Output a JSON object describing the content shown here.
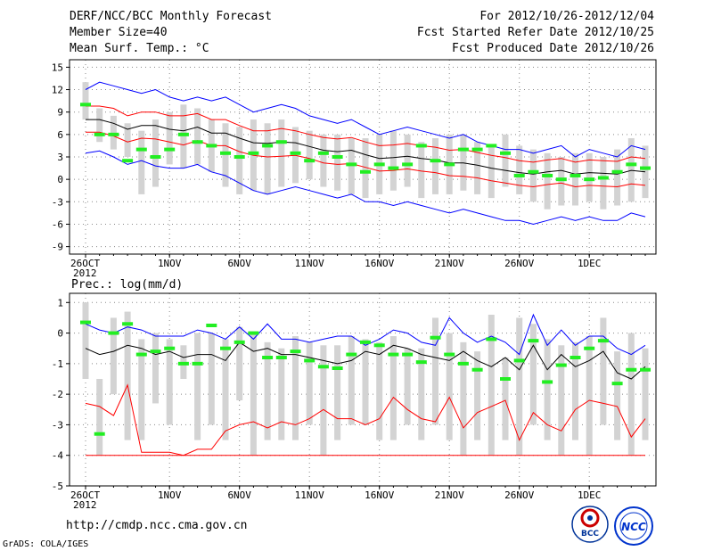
{
  "header": {
    "title": "DERF/NCC/BCC Monthly Forecast",
    "member_size": "Member Size=40",
    "variable": "Mean Surf. Temp.: °C",
    "period": "For 2012/10/26-2012/12/04",
    "started": "Fcst Started Refer Date 2012/10/25",
    "produced": "Fcst Produced Date 2012/10/26"
  },
  "footer": {
    "url": "http://cmdp.ncc.cma.gov.cn",
    "credit": "GrADS: COLA/IGES",
    "logo_bcc": "BCC",
    "logo_ncc": "NCC"
  },
  "colors": {
    "blue": "#0000ff",
    "red": "#ff0000",
    "black": "#000000",
    "green": "#22ee22",
    "bar": "#d3d3d3",
    "grid": "#888888"
  },
  "chart_data": [
    {
      "type": "line",
      "title": "Mean Surf. Temp.: °C",
      "x_ticks": [
        "26OCT",
        "1NOV",
        "6NOV",
        "11NOV",
        "16NOV",
        "21NOV",
        "26NOV",
        "1DEC"
      ],
      "x_tick_index": [
        0,
        6,
        11,
        16,
        21,
        26,
        31,
        36
      ],
      "x_sublabel": "2012",
      "ylim": [
        -10,
        16
      ],
      "y_ticks": [
        -9,
        -6,
        -3,
        0,
        3,
        6,
        9,
        12,
        15
      ],
      "series": [
        {
          "name": "max",
          "color": "blue",
          "values": [
            12.0,
            13.0,
            12.5,
            12.0,
            11.5,
            12.0,
            11.0,
            10.5,
            11.0,
            10.5,
            11.0,
            10.0,
            9.0,
            9.5,
            10.0,
            9.5,
            8.5,
            8.0,
            7.5,
            8.0,
            7.0,
            6.0,
            6.5,
            7.0,
            6.5,
            6.0,
            5.5,
            6.0,
            5.0,
            4.5,
            4.0,
            4.0,
            3.5,
            4.0,
            4.5,
            3.0,
            4.0,
            3.5,
            3.0,
            4.5,
            4.0
          ]
        },
        {
          "name": "q75",
          "color": "red",
          "values": [
            9.8,
            9.8,
            9.5,
            8.5,
            9.0,
            9.0,
            8.5,
            8.5,
            8.8,
            8.0,
            8.0,
            7.2,
            6.5,
            6.5,
            6.8,
            6.5,
            6.0,
            5.6,
            5.4,
            5.6,
            5.0,
            4.5,
            4.6,
            4.8,
            4.5,
            4.3,
            3.9,
            4.0,
            3.6,
            3.2,
            2.9,
            2.5,
            2.3,
            2.6,
            2.8,
            2.3,
            2.6,
            2.5,
            2.4,
            3.0,
            2.8
          ]
        },
        {
          "name": "median",
          "color": "black",
          "values": [
            8.0,
            8.0,
            7.5,
            6.7,
            7.2,
            7.2,
            6.7,
            6.5,
            7.0,
            6.2,
            6.2,
            5.5,
            4.9,
            4.8,
            5.0,
            4.9,
            4.4,
            3.9,
            3.7,
            3.9,
            3.3,
            2.8,
            2.9,
            3.1,
            2.8,
            2.6,
            2.2,
            2.2,
            1.9,
            1.5,
            1.2,
            0.9,
            0.7,
            1.0,
            1.2,
            0.7,
            0.9,
            0.8,
            0.7,
            1.2,
            1.0
          ]
        },
        {
          "name": "q25",
          "color": "red",
          "values": [
            6.3,
            6.3,
            5.8,
            5.0,
            5.5,
            5.4,
            5.0,
            4.6,
            5.2,
            4.5,
            4.5,
            3.7,
            3.2,
            3.0,
            3.1,
            3.2,
            2.8,
            2.2,
            2.0,
            2.1,
            1.6,
            1.1,
            1.2,
            1.4,
            1.1,
            0.9,
            0.5,
            0.4,
            0.2,
            -0.2,
            -0.5,
            -0.8,
            -1.0,
            -0.7,
            -0.5,
            -1.0,
            -0.8,
            -0.9,
            -1.0,
            -0.6,
            -0.8
          ]
        },
        {
          "name": "min",
          "color": "blue",
          "values": [
            3.5,
            3.8,
            3.0,
            2.0,
            2.5,
            1.8,
            1.5,
            1.5,
            2.0,
            1.0,
            0.5,
            -0.5,
            -1.5,
            -2.0,
            -1.5,
            -1.0,
            -1.5,
            -2.0,
            -2.5,
            -2.0,
            -3.0,
            -3.0,
            -3.5,
            -3.0,
            -3.5,
            -4.0,
            -4.5,
            -4.0,
            -4.5,
            -5.0,
            -5.5,
            -5.5,
            -6.0,
            -5.5,
            -5.0,
            -5.5,
            -5.0,
            -5.5,
            -5.5,
            -4.5,
            -5.0
          ]
        }
      ],
      "columns": [
        {
          "values": [
            8.0,
            13.0,
            10.0
          ]
        },
        {
          "values": [
            5.0,
            9.5,
            6.0
          ]
        },
        {
          "values": [
            4.0,
            8.5,
            6.0
          ]
        },
        {
          "values": [
            3.0,
            7.5,
            2.5
          ]
        },
        {
          "values": [
            -2.0,
            6.5,
            4.0
          ]
        },
        {
          "values": [
            -1.0,
            8.0,
            3.0
          ]
        },
        {
          "values": [
            2.0,
            9.0,
            4.0
          ]
        },
        {
          "values": [
            1.5,
            10.0,
            6.0
          ]
        },
        {
          "values": [
            2.0,
            9.5,
            5.0
          ]
        },
        {
          "values": [
            1.0,
            8.0,
            4.5
          ]
        },
        {
          "values": [
            -1.0,
            7.5,
            3.5
          ]
        },
        {
          "values": [
            -2.0,
            7.0,
            3.0
          ]
        },
        {
          "values": [
            -1.5,
            8.0,
            3.5
          ]
        },
        {
          "values": [
            -2.0,
            7.5,
            4.5
          ]
        },
        {
          "values": [
            -1.0,
            8.0,
            5.0
          ]
        },
        {
          "values": [
            -0.5,
            7.0,
            3.5
          ]
        },
        {
          "values": [
            0.0,
            6.5,
            2.5
          ]
        },
        {
          "values": [
            -1.0,
            6.0,
            3.5
          ]
        },
        {
          "values": [
            -1.5,
            6.0,
            3.0
          ]
        },
        {
          "values": [
            -2.0,
            5.5,
            2.0
          ]
        },
        {
          "values": [
            -2.5,
            5.5,
            1.0
          ]
        },
        {
          "values": [
            -2.0,
            6.0,
            2.0
          ]
        },
        {
          "values": [
            -1.5,
            6.5,
            1.5
          ]
        },
        {
          "values": [
            -1.0,
            6.0,
            2.0
          ]
        },
        {
          "values": [
            -2.5,
            5.0,
            4.5
          ]
        },
        {
          "values": [
            -2.0,
            5.5,
            2.5
          ]
        },
        {
          "values": [
            -2.0,
            6.0,
            2.0
          ]
        },
        {
          "values": [
            -1.5,
            6.0,
            4.0
          ]
        },
        {
          "values": [
            -2.0,
            5.0,
            4.0
          ]
        },
        {
          "values": [
            -2.5,
            4.5,
            4.5
          ]
        },
        {
          "values": [
            -1.0,
            6.0,
            3.5
          ]
        },
        {
          "values": [
            -2.0,
            4.5,
            0.5
          ]
        },
        {
          "values": [
            -3.0,
            4.0,
            1.0
          ]
        },
        {
          "values": [
            -4.0,
            3.5,
            0.5
          ]
        },
        {
          "values": [
            -3.5,
            3.0,
            0.0
          ]
        },
        {
          "values": [
            -3.5,
            3.5,
            0.5
          ]
        },
        {
          "values": [
            -3.0,
            3.5,
            0.0
          ]
        },
        {
          "values": [
            -4.0,
            3.0,
            0.2
          ]
        },
        {
          "values": [
            -3.5,
            4.0,
            1.0
          ]
        },
        {
          "values": [
            -3.0,
            5.5,
            2.0
          ]
        },
        {
          "values": [
            -2.5,
            4.5,
            1.5
          ]
        }
      ]
    },
    {
      "type": "line",
      "title": "Prec.: log(mm/d)",
      "x_ticks": [
        "26OCT",
        "1NOV",
        "6NOV",
        "11NOV",
        "16NOV",
        "21NOV",
        "26NOV",
        "1DEC"
      ],
      "x_tick_index": [
        0,
        6,
        11,
        16,
        21,
        26,
        31,
        36
      ],
      "x_sublabel": "2012",
      "ylim": [
        -5,
        1.3
      ],
      "y_ticks": [
        -5,
        -4,
        -3,
        -2,
        -1,
        0,
        1
      ],
      "series": [
        {
          "name": "max",
          "color": "blue",
          "values": [
            0.3,
            0.1,
            0.0,
            0.2,
            0.1,
            -0.1,
            -0.1,
            -0.1,
            0.1,
            0.0,
            -0.2,
            0.2,
            -0.2,
            0.3,
            -0.2,
            -0.2,
            -0.3,
            -0.2,
            -0.1,
            -0.1,
            -0.4,
            -0.2,
            0.1,
            0.0,
            -0.3,
            -0.4,
            0.5,
            0.0,
            -0.3,
            -0.1,
            -0.3,
            -0.7,
            0.6,
            -0.4,
            0.1,
            -0.4,
            -0.1,
            -0.1,
            -0.5,
            -0.7,
            -0.4
          ]
        },
        {
          "name": "median",
          "color": "black",
          "values": [
            -0.5,
            -0.7,
            -0.6,
            -0.4,
            -0.5,
            -0.7,
            -0.6,
            -0.8,
            -0.7,
            -0.7,
            -0.9,
            -0.3,
            -0.6,
            -0.5,
            -0.7,
            -0.7,
            -0.8,
            -0.9,
            -1.0,
            -0.9,
            -0.6,
            -0.7,
            -0.4,
            -0.5,
            -0.7,
            -0.8,
            -0.9,
            -0.6,
            -0.9,
            -1.1,
            -0.8,
            -1.2,
            -0.4,
            -1.2,
            -0.7,
            -1.1,
            -0.9,
            -0.6,
            -1.3,
            -1.5,
            -1.1
          ]
        },
        {
          "name": "min",
          "color": "red",
          "values": [
            -2.3,
            -2.4,
            -2.7,
            -1.7,
            -3.9,
            -3.9,
            -3.9,
            -4.0,
            -3.8,
            -3.8,
            -3.2,
            -3.0,
            -2.9,
            -3.1,
            -2.9,
            -3.0,
            -2.8,
            -2.5,
            -2.8,
            -2.8,
            -3.0,
            -2.8,
            -2.1,
            -2.5,
            -2.8,
            -2.9,
            -2.1,
            -3.1,
            -2.6,
            -2.4,
            -2.2,
            -3.5,
            -2.6,
            -3.0,
            -3.2,
            -2.5,
            -2.2,
            -2.3,
            -2.4,
            -3.4,
            -2.8
          ]
        }
      ],
      "floor": {
        "name": "lower-bound",
        "color": "red",
        "value": -4.0
      },
      "columns": [
        {
          "values": [
            -1.5,
            1.0,
            0.35
          ]
        },
        {
          "values": [
            -4.0,
            -1.5,
            -3.3
          ]
        },
        {
          "values": [
            -2.0,
            0.5,
            0.0
          ]
        },
        {
          "values": [
            -3.5,
            0.7,
            0.3
          ]
        },
        {
          "values": [
            -3.5,
            -0.2,
            -0.7
          ]
        },
        {
          "values": [
            -2.3,
            0.0,
            -0.6
          ]
        },
        {
          "values": [
            -3.0,
            -0.2,
            -0.5
          ]
        },
        {
          "values": [
            -1.5,
            -0.4,
            -1.0
          ]
        },
        {
          "values": [
            -3.5,
            0.0,
            -1.0
          ]
        },
        {
          "values": [
            -3.0,
            0.0,
            0.25
          ]
        },
        {
          "values": [
            -3.5,
            -0.2,
            -0.5
          ]
        },
        {
          "values": [
            -2.2,
            0.2,
            -0.3
          ]
        },
        {
          "values": [
            -4.0,
            0.0,
            0.0
          ]
        },
        {
          "values": [
            -3.5,
            -0.3,
            -0.8
          ]
        },
        {
          "values": [
            -3.5,
            -0.5,
            -0.8
          ]
        },
        {
          "values": [
            -3.5,
            -0.1,
            -0.6
          ]
        },
        {
          "values": [
            -3.0,
            -0.3,
            -0.9
          ]
        },
        {
          "values": [
            -4.0,
            -0.4,
            -1.1
          ]
        },
        {
          "values": [
            -3.5,
            -0.4,
            -1.15
          ]
        },
        {
          "values": [
            -3.0,
            -0.1,
            -0.7
          ]
        },
        {
          "values": [
            -3.0,
            -0.2,
            -0.3
          ]
        },
        {
          "values": [
            -3.5,
            -0.3,
            -0.4
          ]
        },
        {
          "values": [
            -3.5,
            -0.1,
            -0.7
          ]
        },
        {
          "values": [
            -3.0,
            -0.5,
            -0.7
          ]
        },
        {
          "values": [
            -3.5,
            -0.5,
            -0.95
          ]
        },
        {
          "values": [
            -3.0,
            0.5,
            -0.15
          ]
        },
        {
          "values": [
            -3.5,
            0.0,
            -0.7
          ]
        },
        {
          "values": [
            -4.0,
            -0.3,
            -1.0
          ]
        },
        {
          "values": [
            -3.5,
            -0.6,
            -1.2
          ]
        },
        {
          "values": [
            -4.0,
            0.6,
            -0.2
          ]
        },
        {
          "values": [
            -3.5,
            -0.8,
            -1.5
          ]
        },
        {
          "values": [
            -4.0,
            0.5,
            -0.9
          ]
        },
        {
          "values": [
            -3.0,
            0.3,
            -0.25
          ]
        },
        {
          "values": [
            -3.5,
            -0.2,
            -1.6
          ]
        },
        {
          "values": [
            -4.0,
            -0.4,
            -1.05
          ]
        },
        {
          "values": [
            -3.5,
            -0.3,
            -0.8
          ]
        },
        {
          "values": [
            -4.0,
            -0.1,
            -0.5
          ]
        },
        {
          "values": [
            -3.0,
            0.5,
            -0.25
          ]
        },
        {
          "values": [
            -3.5,
            -0.6,
            -1.65
          ]
        },
        {
          "values": [
            -4.0,
            0.0,
            -1.2
          ]
        },
        {
          "values": [
            -3.5,
            -0.5,
            -1.2
          ]
        }
      ]
    }
  ]
}
